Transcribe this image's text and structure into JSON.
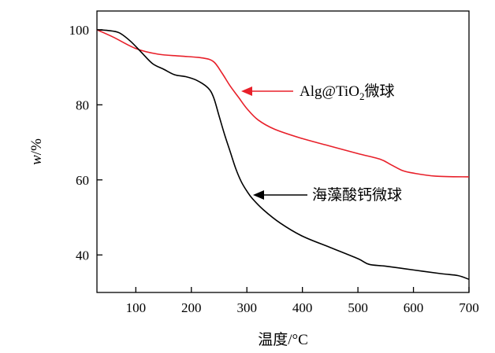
{
  "chart_data": {
    "type": "line",
    "xlabel": "温度/°C",
    "ylabel_main": "w",
    "ylabel_unit": "/%",
    "xlim": [
      30,
      700
    ],
    "ylim": [
      30,
      105
    ],
    "xticks": [
      "100",
      "200",
      "300",
      "400",
      "500",
      "600",
      "700"
    ],
    "yticks": [
      "40",
      "60",
      "80",
      "100"
    ],
    "grid": false,
    "series": [
      {
        "name": "Alg@TiO2微球",
        "color": "#e8202a",
        "x": [
          30,
          60,
          100,
          140,
          180,
          220,
          240,
          255,
          270,
          285,
          300,
          320,
          350,
          400,
          450,
          500,
          540,
          560,
          580,
          600,
          640,
          700
        ],
        "y": [
          100,
          98,
          95,
          93.5,
          93,
          92.5,
          91.5,
          88.5,
          85,
          82,
          79,
          76,
          73.5,
          71,
          69,
          67,
          65.5,
          64,
          62.5,
          61.8,
          61,
          60.8
        ]
      },
      {
        "name": "海藻酸钙微球",
        "color": "#000000",
        "x": [
          30,
          50,
          70,
          90,
          110,
          130,
          150,
          170,
          190,
          210,
          230,
          240,
          250,
          260,
          270,
          280,
          290,
          300,
          310,
          330,
          360,
          400,
          450,
          500,
          520,
          550,
          600,
          650,
          680,
          700
        ],
        "y": [
          100,
          99.8,
          99.2,
          97,
          94,
          91,
          89.5,
          88,
          87.5,
          86.5,
          84.5,
          82,
          77,
          72,
          67.5,
          63,
          59.5,
          57,
          55,
          52,
          48.5,
          45,
          42,
          39,
          37.5,
          37,
          36,
          35,
          34.5,
          33.5
        ]
      }
    ],
    "annotations": [
      {
        "target_series": 0,
        "label": "Alg@TiO",
        "subscript": "2",
        "suffix": "微球"
      },
      {
        "target_series": 1,
        "label": "海藻酸钙微球"
      }
    ]
  }
}
